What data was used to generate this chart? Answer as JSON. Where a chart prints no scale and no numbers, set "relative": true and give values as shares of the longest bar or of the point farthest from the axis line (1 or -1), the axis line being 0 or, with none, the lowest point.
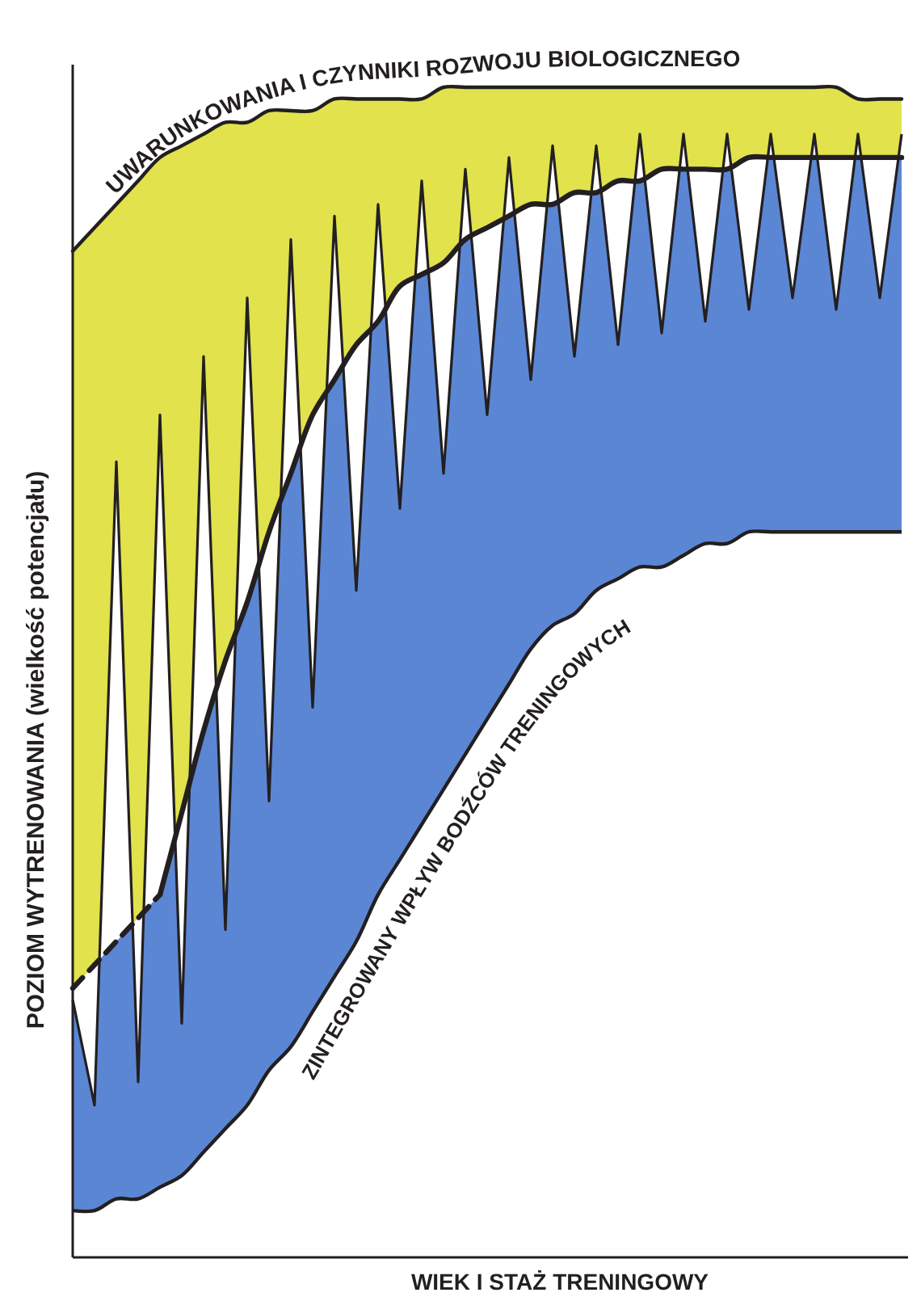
{
  "chart_data": {
    "type": "area",
    "relative": true,
    "xlabel": "WIEK I STAŻ TRENINGOWY",
    "ylabel": "POZIOM WYTRENOWANIA (wielkość potencjału)",
    "annotations": [
      "UWARUNKOWANIA I CZYNNIKI ROZWOJU BIOLOGICZNEGO",
      "ZINTEGROWANY WPŁYW BODŹCÓW TRENINGOWYCH"
    ],
    "categories": [
      null,
      null,
      null,
      null,
      null,
      null,
      null,
      null,
      null,
      null,
      null,
      null,
      null,
      null,
      null,
      null,
      null,
      null,
      null,
      null,
      null,
      null,
      null,
      null,
      null,
      null,
      null,
      null,
      null,
      null,
      null,
      null,
      null,
      null,
      null,
      null,
      null,
      null,
      null
    ],
    "series": [
      {
        "type": "area",
        "color": "#e1e24c",
        "values": [
          0.86,
          0.88,
          0.9,
          0.92,
          0.94,
          0.95,
          0.96,
          0.97,
          0.97,
          0.98,
          0.98,
          0.98,
          0.99,
          0.99,
          0.99,
          0.99,
          0.99,
          1.0,
          1.0,
          1.0,
          1.0,
          1.0,
          1.0,
          1.0,
          1.0,
          1.0,
          1.0,
          1.0,
          1.0,
          1.0,
          1.0,
          1.0,
          1.0,
          1.0,
          1.0,
          1.0,
          0.99,
          0.99,
          0.99
        ]
      },
      {
        "type": "line",
        "color": "#231f20",
        "values": [
          0.22,
          0.13,
          0.68,
          0.15,
          0.72,
          0.2,
          0.77,
          0.28,
          0.82,
          0.39,
          0.87,
          0.47,
          0.89,
          0.57,
          0.9,
          0.64,
          0.92,
          0.67,
          0.93,
          0.72,
          0.94,
          0.75,
          0.95,
          0.77,
          0.95,
          0.78,
          0.96,
          0.79,
          0.96,
          0.8,
          0.96,
          0.81,
          0.96,
          0.82,
          0.96,
          0.81,
          0.96,
          0.82,
          0.96
        ]
      },
      {
        "type": "area",
        "color": "#5b86d4",
        "line_style": "dashed",
        "values": [
          0.23,
          0.25,
          0.27,
          0.29,
          0.31,
          null,
          null,
          null,
          null,
          null,
          null,
          null,
          null,
          null,
          null,
          null,
          null,
          null,
          null,
          null,
          null,
          null,
          null,
          null,
          null,
          null,
          null,
          null,
          null,
          null,
          null,
          null,
          null,
          null,
          null,
          null,
          null,
          null,
          null
        ]
      },
      {
        "type": "area",
        "color": "#5b86d4",
        "line_style": "solid",
        "values": [
          null,
          null,
          null,
          null,
          0.31,
          0.38,
          0.45,
          0.51,
          0.56,
          0.62,
          0.67,
          0.72,
          0.75,
          0.78,
          0.8,
          0.83,
          0.84,
          0.85,
          0.87,
          0.88,
          0.89,
          0.9,
          0.9,
          0.91,
          0.91,
          0.92,
          0.92,
          0.93,
          0.93,
          0.93,
          0.93,
          0.94,
          0.94,
          0.94,
          0.94,
          0.94,
          0.94,
          0.94,
          0.94
        ]
      },
      {
        "type": "line",
        "color": "#231f20",
        "values": [
          0.04,
          0.04,
          0.05,
          0.05,
          0.06,
          0.07,
          0.09,
          0.11,
          0.13,
          0.16,
          0.18,
          0.21,
          0.24,
          0.27,
          0.31,
          0.34,
          0.37,
          0.4,
          0.43,
          0.46,
          0.49,
          0.52,
          0.54,
          0.55,
          0.57,
          0.58,
          0.59,
          0.59,
          0.6,
          0.61,
          0.61,
          0.62,
          0.62,
          0.62,
          0.62,
          0.62,
          0.62,
          0.62,
          0.62
        ]
      }
    ]
  }
}
